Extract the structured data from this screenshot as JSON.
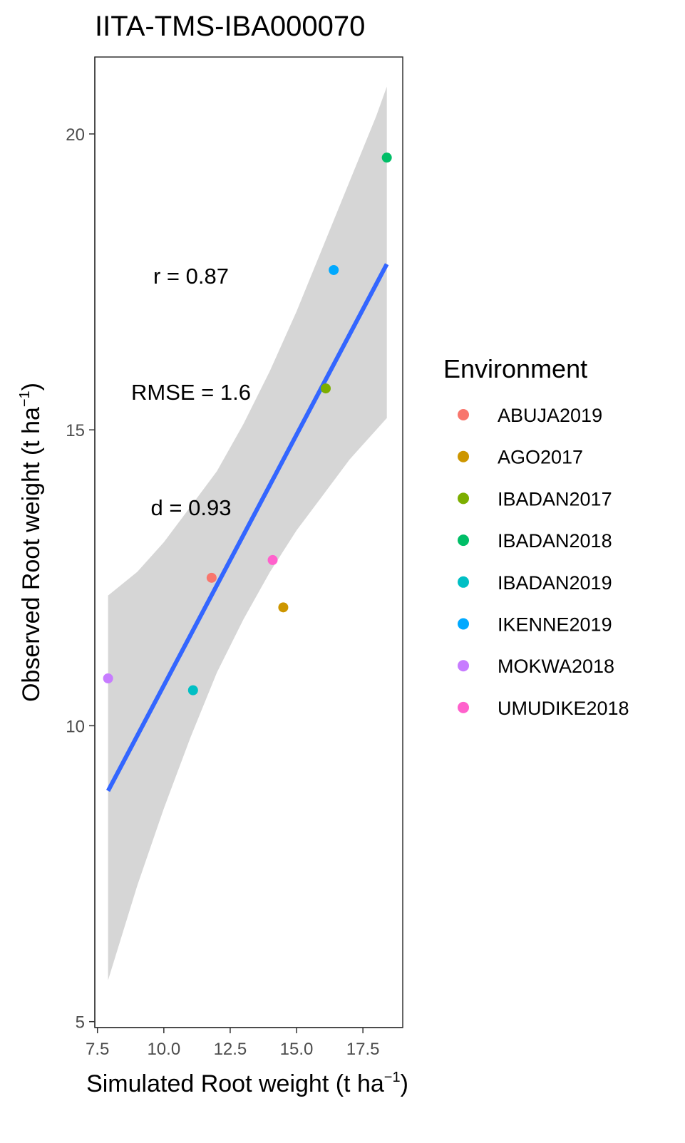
{
  "chart_data": {
    "type": "scatter",
    "title": "IITA-TMS-IBA000070",
    "xlabel": "Simulated Root weight",
    "ylabel": "Observed Root weight",
    "unit_base": "t ha",
    "unit_exp": "−1",
    "xlim": [
      7.4,
      19.0
    ],
    "ylim": [
      4.9,
      21.3
    ],
    "x_ticks": [
      7.5,
      10.0,
      12.5,
      15.0,
      17.5
    ],
    "x_tick_labels": [
      "7.5",
      "10.0",
      "12.5",
      "15.0",
      "17.5"
    ],
    "y_ticks": [
      5,
      10,
      15,
      20
    ],
    "y_tick_labels": [
      "5",
      "10",
      "15",
      "20"
    ],
    "grid": false,
    "legend_title": "Environment",
    "legend_position": "right",
    "series": [
      {
        "name": "ABUJA2019",
        "color": "#F8766D",
        "x": 11.8,
        "y": 12.5
      },
      {
        "name": "AGO2017",
        "color": "#CD9600",
        "x": 14.5,
        "y": 12.0
      },
      {
        "name": "IBADAN2017",
        "color": "#7CAE00",
        "x": 16.1,
        "y": 15.7
      },
      {
        "name": "IBADAN2018",
        "color": "#00BE67",
        "x": 18.4,
        "y": 19.6
      },
      {
        "name": "IBADAN2019",
        "color": "#00BFC4",
        "x": 11.1,
        "y": 10.6
      },
      {
        "name": "IKENNE2019",
        "color": "#00A9FF",
        "x": 16.4,
        "y": 17.7
      },
      {
        "name": "MOKWA2018",
        "color": "#C77CFF",
        "x": 7.9,
        "y": 10.8
      },
      {
        "name": "UMUDIKE2018",
        "color": "#FF61CC",
        "x": 14.1,
        "y": 12.8
      }
    ],
    "fit_line": {
      "color": "#3366FF",
      "x": [
        7.9,
        18.4
      ],
      "y": [
        8.9,
        17.8
      ]
    },
    "confidence_band": {
      "color": "#d6d6d6",
      "x": [
        7.9,
        9.0,
        10.0,
        11.0,
        12.0,
        13.0,
        14.0,
        15.0,
        16.0,
        17.0,
        18.0,
        18.4
      ],
      "lower": [
        5.7,
        7.3,
        8.6,
        9.8,
        10.9,
        11.8,
        12.6,
        13.3,
        13.9,
        14.5,
        15.0,
        15.2
      ],
      "upper": [
        12.2,
        12.6,
        13.1,
        13.7,
        14.3,
        15.1,
        16.0,
        17.0,
        18.1,
        19.2,
        20.3,
        20.8
      ]
    },
    "annotations": [
      "r = 0.87",
      "RMSE = 1.6",
      "d = 0.93"
    ]
  }
}
